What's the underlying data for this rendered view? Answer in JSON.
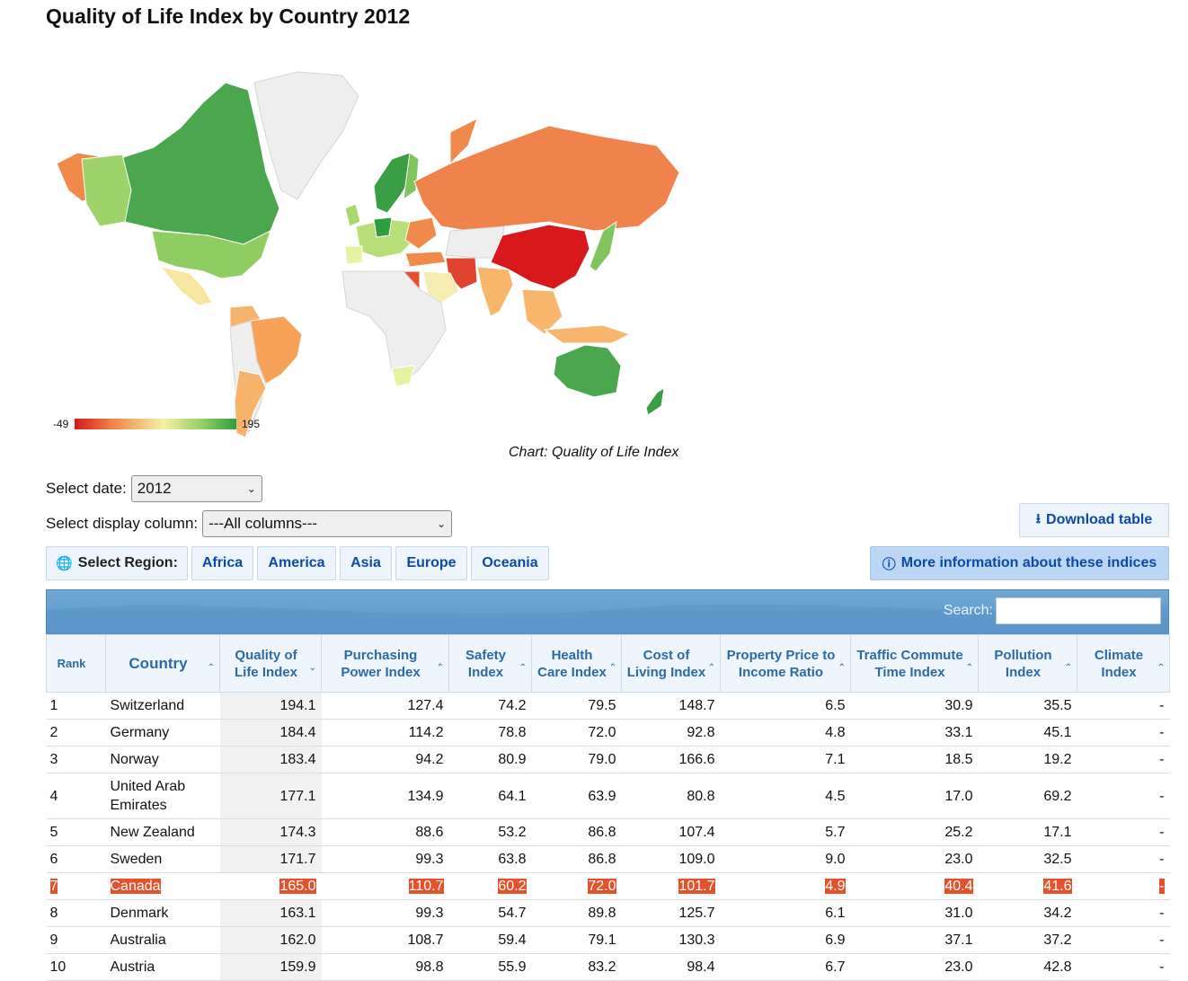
{
  "page": {
    "title": "Quality of Life Index by Country 2012"
  },
  "map": {
    "legend_min": "-49",
    "legend_max": "195",
    "caption": "Chart: Quality of Life Index",
    "colors": {
      "low": "#d7191c",
      "mid": "#f7f1a6",
      "high": "#2e9e42",
      "no_data": "#eeeeee"
    }
  },
  "controls": {
    "date_label": "Select date:",
    "date_value": "2012",
    "column_label": "Select display column:",
    "column_value": "---All columns---",
    "download_label": "Download table",
    "more_info_label": "More information about these indices",
    "region_label": "Select Region:",
    "regions": [
      "Africa",
      "America",
      "Asia",
      "Europe",
      "Oceania"
    ],
    "search_label": "Search:"
  },
  "table": {
    "columns": [
      "Rank",
      "Country",
      "Quality of Life Index",
      "Purchasing Power Index",
      "Safety Index",
      "Health Care Index",
      "Cost of Living Index",
      "Property Price to Income Ratio",
      "Traffic Commute Time Index",
      "Pollution Index",
      "Climate Index"
    ],
    "rows": [
      [
        "1",
        "Switzerland",
        "194.1",
        "127.4",
        "74.2",
        "79.5",
        "148.7",
        "6.5",
        "30.9",
        "35.5",
        "-"
      ],
      [
        "2",
        "Germany",
        "184.4",
        "114.2",
        "78.8",
        "72.0",
        "92.8",
        "4.8",
        "33.1",
        "45.1",
        "-"
      ],
      [
        "3",
        "Norway",
        "183.4",
        "94.2",
        "80.9",
        "79.0",
        "166.6",
        "7.1",
        "18.5",
        "19.2",
        "-"
      ],
      [
        "4",
        "United Arab Emirates",
        "177.1",
        "134.9",
        "64.1",
        "63.9",
        "80.8",
        "4.5",
        "17.0",
        "69.2",
        "-"
      ],
      [
        "5",
        "New Zealand",
        "174.3",
        "88.6",
        "53.2",
        "86.8",
        "107.4",
        "5.7",
        "25.2",
        "17.1",
        "-"
      ],
      [
        "6",
        "Sweden",
        "171.7",
        "99.3",
        "63.8",
        "86.8",
        "109.0",
        "9.0",
        "23.0",
        "32.5",
        "-"
      ],
      [
        "7",
        "Canada",
        "165.0",
        "110.7",
        "60.2",
        "72.0",
        "101.7",
        "4.9",
        "40.4",
        "41.6",
        "-"
      ],
      [
        "8",
        "Denmark",
        "163.1",
        "99.3",
        "54.7",
        "89.8",
        "125.7",
        "6.1",
        "31.0",
        "34.2",
        "-"
      ],
      [
        "9",
        "Australia",
        "162.0",
        "108.7",
        "59.4",
        "79.1",
        "130.3",
        "6.9",
        "37.1",
        "37.2",
        "-"
      ],
      [
        "10",
        "Austria",
        "159.9",
        "98.8",
        "55.9",
        "83.2",
        "98.4",
        "6.7",
        "23.0",
        "42.8",
        "-"
      ]
    ],
    "highlight_color": "#e4522b"
  }
}
